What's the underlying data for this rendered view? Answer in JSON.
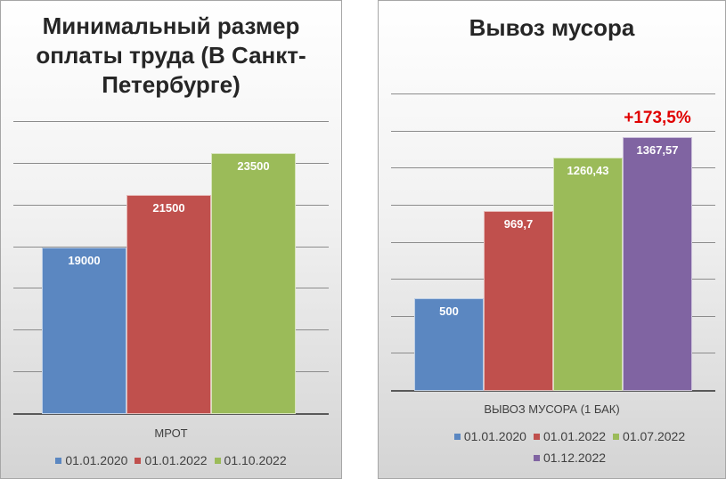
{
  "colors": {
    "blue": "#5b87c1",
    "red": "#c0504d",
    "green": "#9bbb59",
    "purple": "#8064a2",
    "annotation": "#e00000"
  },
  "chart_data": [
    {
      "type": "bar",
      "title": "Минимальный размер оплаты труда (В Санкт-Петербурге)",
      "title_lines": [
        "Минимальный размер",
        "оплаты труда (В Санкт-",
        "Петербурге)"
      ],
      "categories": [
        "МРОТ"
      ],
      "series": [
        {
          "name": "01.01.2020",
          "values": [
            19000
          ],
          "color": "#5b87c1",
          "label": "19000"
        },
        {
          "name": "01.01.2022",
          "values": [
            21500
          ],
          "color": "#c0504d",
          "label": "21500"
        },
        {
          "name": "01.10.2022",
          "values": [
            23500
          ],
          "color": "#9bbb59",
          "label": "23500"
        }
      ],
      "ylim": [
        11000,
        25000
      ],
      "gridlines": [
        13000,
        15000,
        17000,
        19000,
        21000,
        23000,
        25000
      ],
      "grid": true,
      "legend_position": "bottom"
    },
    {
      "type": "bar",
      "title": "Вывоз мусора",
      "title_lines": [
        "Вывоз мусора"
      ],
      "categories": [
        "ВЫВОЗ МУСОРА (1 БАК)"
      ],
      "series": [
        {
          "name": "01.01.2020",
          "values": [
            500
          ],
          "color": "#5b87c1",
          "label": "500"
        },
        {
          "name": "01.01.2022",
          "values": [
            969.7
          ],
          "color": "#c0504d",
          "label": "969,7"
        },
        {
          "name": "01.07.2022",
          "values": [
            1260.43
          ],
          "color": "#9bbb59",
          "label": "1260,43"
        },
        {
          "name": "01.12.2022",
          "values": [
            1367.57
          ],
          "color": "#8064a2",
          "label": "1367,57"
        }
      ],
      "annotation": "+173,5%",
      "ylim": [
        0,
        1600
      ],
      "gridlines": [
        200,
        400,
        600,
        800,
        1000,
        1200,
        1400,
        1600
      ],
      "grid": true,
      "legend_position": "bottom"
    }
  ]
}
